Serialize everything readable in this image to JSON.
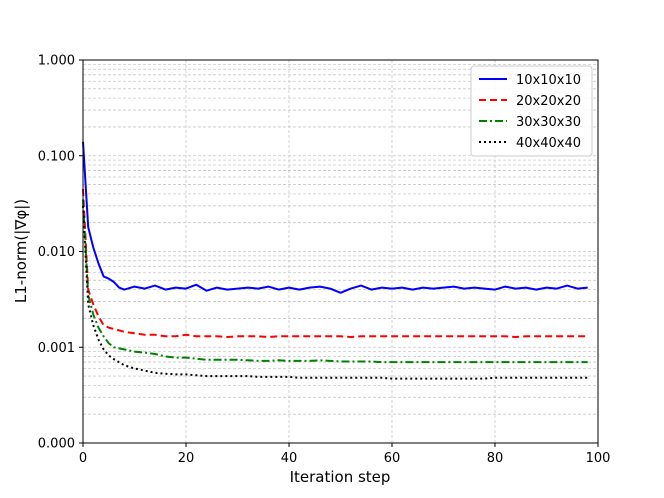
{
  "chart_data": {
    "type": "line",
    "xlabel": "Iteration step",
    "ylabel": "L1-norm(|∇φ|)",
    "x_scale": "linear",
    "y_scale": "log",
    "xlim": [
      0,
      100
    ],
    "ylim": [
      0.0001,
      1.0
    ],
    "x_ticks": [
      0,
      20,
      40,
      60,
      80,
      100
    ],
    "x_tick_labels": [
      "0",
      "20",
      "40",
      "60",
      "80",
      "100"
    ],
    "y_ticks": [
      0.0001,
      0.001,
      0.01,
      0.1,
      1.0
    ],
    "y_tick_labels": [
      "0.000",
      "0.001",
      "0.010",
      "0.100",
      "1.000"
    ],
    "grid": true,
    "legend_position": "top-right",
    "series": [
      {
        "name": "10x10x10",
        "color": "#0000ff",
        "dash": "solid",
        "x": [
          0,
          1,
          2,
          3,
          4,
          5,
          6,
          7,
          8,
          10,
          12,
          14,
          16,
          18,
          20,
          22,
          24,
          26,
          28,
          30,
          32,
          34,
          36,
          38,
          40,
          42,
          44,
          46,
          48,
          50,
          52,
          54,
          56,
          58,
          60,
          62,
          64,
          66,
          68,
          70,
          72,
          74,
          76,
          78,
          80,
          82,
          84,
          86,
          88,
          90,
          92,
          94,
          96,
          98
        ],
        "y": [
          0.14,
          0.018,
          0.011,
          0.0075,
          0.0055,
          0.0052,
          0.0048,
          0.0042,
          0.004,
          0.0043,
          0.0041,
          0.0044,
          0.004,
          0.0042,
          0.0041,
          0.0045,
          0.0039,
          0.0042,
          0.004,
          0.0041,
          0.0042,
          0.0041,
          0.0043,
          0.004,
          0.0042,
          0.004,
          0.0042,
          0.0043,
          0.0041,
          0.0037,
          0.0041,
          0.0044,
          0.004,
          0.0042,
          0.0041,
          0.0042,
          0.004,
          0.0042,
          0.0041,
          0.0042,
          0.0043,
          0.0041,
          0.0042,
          0.0041,
          0.004,
          0.0043,
          0.0041,
          0.0042,
          0.004,
          0.0042,
          0.0041,
          0.0044,
          0.0041,
          0.0042
        ]
      },
      {
        "name": "20x20x20",
        "color": "#ff0000",
        "dash": "dashed",
        "x": [
          0,
          1,
          2,
          3,
          4,
          5,
          6,
          8,
          10,
          12,
          14,
          16,
          18,
          20,
          22,
          24,
          26,
          28,
          30,
          32,
          34,
          36,
          38,
          40,
          42,
          44,
          46,
          48,
          50,
          52,
          54,
          56,
          58,
          60,
          62,
          64,
          66,
          68,
          70,
          72,
          74,
          76,
          78,
          80,
          82,
          84,
          86,
          88,
          90,
          92,
          94,
          96,
          98
        ],
        "y": [
          0.045,
          0.004,
          0.0028,
          0.0021,
          0.0017,
          0.0016,
          0.00155,
          0.00145,
          0.0014,
          0.00135,
          0.00135,
          0.0013,
          0.0013,
          0.00135,
          0.0013,
          0.0013,
          0.0013,
          0.00128,
          0.0013,
          0.0013,
          0.0013,
          0.00128,
          0.0013,
          0.0013,
          0.0013,
          0.0013,
          0.0013,
          0.0013,
          0.0013,
          0.00128,
          0.0013,
          0.0013,
          0.0013,
          0.0013,
          0.0013,
          0.0013,
          0.0013,
          0.0013,
          0.0013,
          0.0013,
          0.0013,
          0.0013,
          0.0013,
          0.0013,
          0.0013,
          0.00128,
          0.0013,
          0.0013,
          0.0013,
          0.0013,
          0.0013,
          0.0013,
          0.0013
        ]
      },
      {
        "name": "30x30x30",
        "color": "#008000",
        "dash": "dashdot",
        "x": [
          0,
          1,
          2,
          3,
          4,
          5,
          6,
          8,
          10,
          12,
          14,
          16,
          18,
          20,
          22,
          24,
          26,
          28,
          30,
          32,
          34,
          36,
          38,
          40,
          42,
          44,
          46,
          48,
          50,
          52,
          54,
          56,
          58,
          60,
          62,
          64,
          66,
          68,
          70,
          72,
          74,
          76,
          78,
          80,
          82,
          84,
          86,
          88,
          90,
          92,
          94,
          96,
          98
        ],
        "y": [
          0.035,
          0.0035,
          0.0022,
          0.0016,
          0.0013,
          0.0011,
          0.001,
          0.00095,
          0.0009,
          0.00088,
          0.00085,
          0.0008,
          0.00078,
          0.00078,
          0.00076,
          0.00074,
          0.00074,
          0.00074,
          0.00074,
          0.00073,
          0.00072,
          0.00072,
          0.00073,
          0.00072,
          0.00072,
          0.00072,
          0.00073,
          0.00072,
          0.00071,
          0.00071,
          0.00071,
          0.00071,
          0.0007,
          0.0007,
          0.0007,
          0.0007,
          0.0007,
          0.0007,
          0.0007,
          0.0007,
          0.0007,
          0.0007,
          0.0007,
          0.0007,
          0.0007,
          0.0007,
          0.0007,
          0.0007,
          0.0007,
          0.0007,
          0.0007,
          0.0007,
          0.0007
        ]
      },
      {
        "name": "40x40x40",
        "color": "#000000",
        "dash": "dotted",
        "x": [
          0,
          1,
          2,
          3,
          4,
          5,
          6,
          8,
          10,
          12,
          14,
          16,
          18,
          20,
          22,
          24,
          26,
          28,
          30,
          32,
          34,
          36,
          38,
          40,
          42,
          44,
          46,
          48,
          50,
          52,
          54,
          56,
          58,
          60,
          62,
          64,
          66,
          68,
          70,
          72,
          74,
          76,
          78,
          80,
          82,
          84,
          86,
          88,
          90,
          92,
          94,
          96,
          98
        ],
        "y": [
          0.03,
          0.0028,
          0.0017,
          0.0012,
          0.00095,
          0.00082,
          0.00075,
          0.00065,
          0.0006,
          0.00057,
          0.00054,
          0.00053,
          0.00052,
          0.00052,
          0.00051,
          0.0005,
          0.0005,
          0.0005,
          0.0005,
          0.0005,
          0.00049,
          0.00049,
          0.00049,
          0.00049,
          0.00048,
          0.00048,
          0.00048,
          0.00048,
          0.00048,
          0.00048,
          0.00048,
          0.00048,
          0.00048,
          0.00047,
          0.00047,
          0.00047,
          0.00047,
          0.00047,
          0.00047,
          0.00047,
          0.00047,
          0.00047,
          0.00047,
          0.00048,
          0.00048,
          0.00048,
          0.00048,
          0.00048,
          0.00048,
          0.00048,
          0.00048,
          0.00048,
          0.00048
        ]
      }
    ]
  }
}
